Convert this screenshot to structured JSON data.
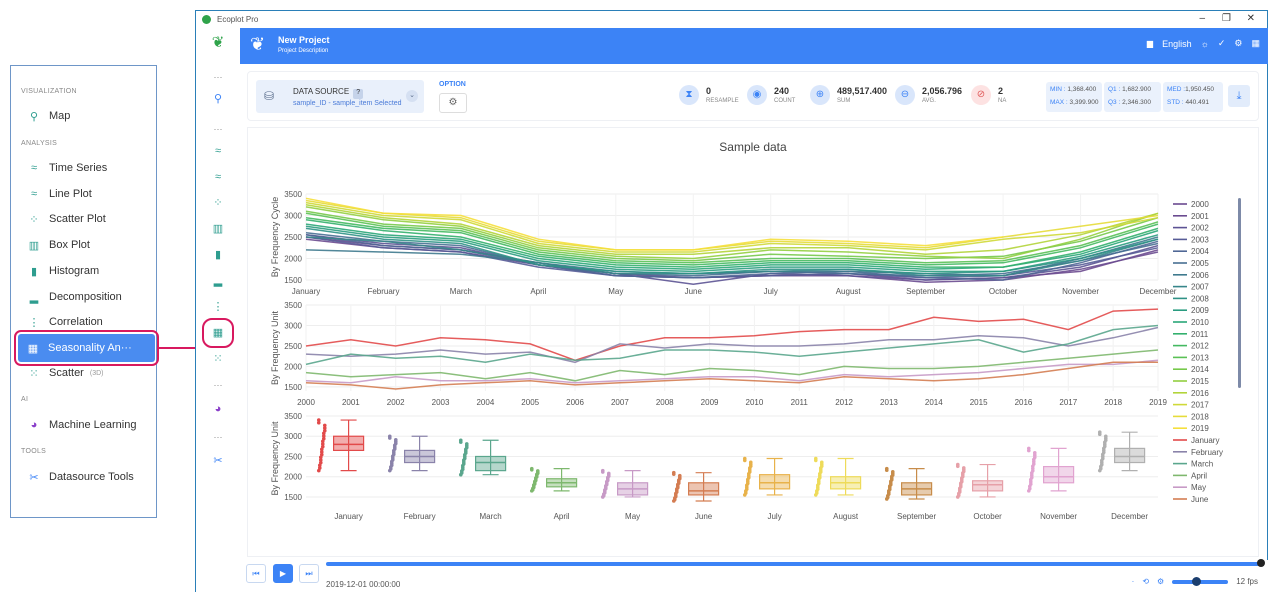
{
  "sidebar": {
    "sections": {
      "visualization": "VISUALIZATION",
      "analysis": "ANALYSIS",
      "ai": "AI",
      "tools": "TOOLS"
    },
    "items": [
      {
        "label": "Map",
        "icon": "map-pin-icon"
      },
      {
        "label": "Time Series",
        "icon": "time-series-icon"
      },
      {
        "label": "Line Plot",
        "icon": "line-plot-icon"
      },
      {
        "label": "Scatter Plot",
        "icon": "scatter-plot-icon"
      },
      {
        "label": "Box Plot",
        "icon": "box-plot-icon"
      },
      {
        "label": "Histogram",
        "icon": "histogram-icon"
      },
      {
        "label": "Decomposition",
        "icon": "decomposition-icon"
      },
      {
        "label": "Correlation",
        "icon": "correlation-icon"
      },
      {
        "label": "Seasonality An···",
        "icon": "seasonality-icon",
        "active": true
      },
      {
        "label": "Scatter",
        "tag": "(3D)",
        "icon": "scatter-3d-icon"
      },
      {
        "label": "Machine Learning",
        "icon": "machine-learning-icon"
      },
      {
        "label": "Datasource Tools",
        "icon": "datasource-tools-icon"
      }
    ]
  },
  "window": {
    "title": "Ecoplot Pro",
    "minimize": "–",
    "maximize": "❐",
    "close": "✕"
  },
  "header": {
    "project": "New Project",
    "description": "Project Description",
    "language": "English"
  },
  "toolbar": {
    "datasource_label": "DATA SOURCE",
    "datasource_help": "?",
    "datasource_value": "sample_ID - sample_item Selected",
    "option_label": "OPTION",
    "stats": [
      {
        "value": "0",
        "label": "RESAMPLE",
        "icon": "resample-icon",
        "color": "#3c83f6"
      },
      {
        "value": "240",
        "label": "COUNT",
        "icon": "count-icon",
        "color": "#3c83f6"
      },
      {
        "value": "489,517.400",
        "label": "SUM",
        "icon": "sum-icon",
        "color": "#3c83f6"
      },
      {
        "value": "2,056.796",
        "label": "AVG.",
        "icon": "avg-icon",
        "color": "#3c83f6"
      },
      {
        "value": "2",
        "label": "NA",
        "icon": "na-icon",
        "color": "#e05a5a"
      }
    ],
    "quartiles": {
      "min_l": "MIN :",
      "min": "1,368.400",
      "q1_l": "Q1 :",
      "q1": "1,682.900",
      "med_l": "MED :",
      "med": "1,950.450",
      "max_l": "MAX :",
      "max": "3,399.900",
      "q3_l": "Q3 :",
      "q3": "2,346.300",
      "std_l": "STD :",
      "std": "440.491"
    }
  },
  "chart_data": {
    "type": "line",
    "title": "Sample data",
    "panels": [
      {
        "ylabel": "By Frequency Cycle",
        "ylim": [
          1500,
          3500
        ],
        "yticks": [
          1500,
          2000,
          2500,
          3000,
          3500
        ],
        "categories": [
          "January",
          "February",
          "March",
          "April",
          "May",
          "June",
          "July",
          "August",
          "September",
          "October",
          "November",
          "December"
        ],
        "series": [
          {
            "name": "2000",
            "values": [
              2450,
              2250,
              2150,
              1850,
              1600,
              1550,
              1600,
              1650,
              1500,
              1550,
              1700,
              2200
            ]
          },
          {
            "name": "2001",
            "values": [
              2500,
              2300,
              2200,
              1900,
              1650,
              1550,
              1600,
              1600,
              1450,
              1500,
              1750,
              2150
            ]
          },
          {
            "name": "2002",
            "values": [
              2550,
              2350,
              2250,
              1850,
              1650,
              1400,
              1650,
              1600,
              1500,
              1550,
              1800,
              2300
            ]
          },
          {
            "name": "2003",
            "values": [
              2500,
              2250,
              2150,
              1800,
              1600,
              1550,
              1600,
              1650,
              1550,
              1600,
              1850,
              2250
            ]
          },
          {
            "name": "2004",
            "values": [
              2550,
              2300,
              2200,
              1850,
              1600,
              1550,
              1650,
              1700,
              1550,
              1500,
              1900,
              2400
            ]
          },
          {
            "name": "2005",
            "values": [
              2600,
              2400,
              2300,
              1850,
              1650,
              1600,
              1700,
              1650,
              1600,
              1650,
              1950,
              2350
            ]
          },
          {
            "name": "2006",
            "values": [
              2200,
              2150,
              2100,
              1900,
              1700,
              1650,
              1700,
              1700,
              1650,
              1600,
              2000,
              2500
            ]
          },
          {
            "name": "2007",
            "values": [
              2500,
              2400,
              2200,
              1900,
              1650,
              1650,
              1700,
              1750,
              1600,
              1600,
              1950,
              2450
            ]
          },
          {
            "name": "2008",
            "values": [
              2700,
              2450,
              2350,
              1850,
              1700,
              1650,
              1750,
              1750,
              1650,
              1700,
              2000,
              2450
            ]
          },
          {
            "name": "2009",
            "values": [
              2750,
              2500,
              2400,
              1950,
              1750,
              1700,
              1800,
              1800,
              1700,
              1700,
              2050,
              2550
            ]
          },
          {
            "name": "2010",
            "values": [
              2800,
              2550,
              2450,
              2000,
              1800,
              1750,
              1850,
              1850,
              1750,
              1800,
              2100,
              2650
            ]
          },
          {
            "name": "2011",
            "values": [
              2900,
              2650,
              2500,
              2050,
              1850,
              1800,
              1900,
              1900,
              1800,
              1800,
              2150,
              2700
            ]
          },
          {
            "name": "2012",
            "values": [
              2950,
              2700,
              2600,
              2100,
              1900,
              1850,
              1950,
              1950,
              1850,
              1900,
              2250,
              2800
            ]
          },
          {
            "name": "2013",
            "values": [
              3050,
              2750,
              2650,
              2150,
              1950,
              1900,
              2000,
              2000,
              1900,
              1950,
              2300,
              2850
            ]
          },
          {
            "name": "2014",
            "values": [
              3100,
              2800,
              2700,
              2200,
              2000,
              1950,
              2100,
              2050,
              2000,
              2050,
              2400,
              2950
            ]
          },
          {
            "name": "2015",
            "values": [
              3200,
              2900,
              2750,
              2250,
              2050,
              2000,
              2200,
              2150,
              2050,
              2000,
              2450,
              3050
            ]
          },
          {
            "name": "2016",
            "values": [
              3250,
              2950,
              2800,
              2300,
              2100,
              2100,
              2250,
              2250,
              2100,
              2200,
              2550,
              3050
            ]
          },
          {
            "name": "2017",
            "values": [
              3300,
              3000,
              2900,
              2350,
              2150,
              2150,
              2350,
              2300,
              2200,
              2450,
              2600,
              2950
            ]
          },
          {
            "name": "2018",
            "values": [
              3350,
              3050,
              2950,
              2400,
              2200,
              2200,
              2400,
              2350,
              2250,
              2500,
              2750,
              3000
            ]
          },
          {
            "name": "2019",
            "values": [
              3400,
              3050,
              3000,
              2450,
              2200,
              2200,
              2450,
              2400,
              2300,
              2500,
              null,
              null
            ]
          }
        ]
      },
      {
        "ylabel": "By Frequency Unit",
        "ylim": [
          1400,
          3500
        ],
        "yticks": [
          1500,
          2000,
          2500,
          3000,
          3500
        ],
        "x": [
          2000,
          2001,
          2002,
          2003,
          2004,
          2005,
          2006,
          2007,
          2008,
          2009,
          2010,
          2011,
          2012,
          2013,
          2014,
          2015,
          2016,
          2017,
          2018,
          2019
        ],
        "series": [
          {
            "name": "January",
            "values": [
              2500,
              2650,
              2500,
              2700,
              2650,
              2550,
              2150,
              2500,
              2700,
              2700,
              2750,
              2850,
              2900,
              2900,
              3200,
              3100,
              3150,
              2900,
              3350,
              3400
            ]
          },
          {
            "name": "February",
            "values": [
              2300,
              2250,
              2300,
              2400,
              2300,
              2350,
              2100,
              2550,
              2450,
              2550,
              2500,
              2500,
              2550,
              2650,
              2650,
              2750,
              2700,
              2500,
              2700,
              2950
            ]
          },
          {
            "name": "March",
            "values": [
              2050,
              2300,
              2200,
              2250,
              2100,
              2300,
              2150,
              2200,
              2400,
              2400,
              2350,
              2250,
              2350,
              2450,
              2550,
              2650,
              2350,
              2550,
              2900,
              3000
            ]
          },
          {
            "name": "April",
            "values": [
              1850,
              1750,
              1800,
              1850,
              1700,
              1850,
              1650,
              1900,
              1800,
              1950,
              1900,
              1800,
              2000,
              1950,
              1950,
              2000,
              2100,
              2200,
              2300,
              2400
            ]
          },
          {
            "name": "May",
            "values": [
              1650,
              1600,
              1750,
              1650,
              1650,
              1700,
              1600,
              1650,
              1700,
              1750,
              1750,
              1650,
              1800,
              1750,
              1800,
              1850,
              1950,
              2050,
              2050,
              2150
            ]
          },
          {
            "name": "June",
            "values": [
              1600,
              1550,
              1450,
              1550,
              1600,
              1650,
              1550,
              1600,
              1650,
              1700,
              1650,
              1600,
              1750,
              1700,
              1650,
              1700,
              1800,
              1950,
              2100,
              2100
            ]
          }
        ]
      },
      {
        "type": "box",
        "ylabel": "By Frequency Unit",
        "ylim": [
          1400,
          3500
        ],
        "yticks": [
          1500,
          2000,
          2500,
          3000,
          3500
        ],
        "categories": [
          "January",
          "February",
          "March",
          "April",
          "May",
          "June",
          "July",
          "August",
          "September",
          "October",
          "November",
          "December"
        ],
        "boxes": [
          {
            "min": 2150,
            "q1": 2650,
            "med": 2800,
            "q3": 3000,
            "max": 3400
          },
          {
            "min": 2150,
            "q1": 2350,
            "med": 2500,
            "q3": 2650,
            "max": 3000
          },
          {
            "min": 2050,
            "q1": 2150,
            "med": 2350,
            "q3": 2500,
            "max": 2900
          },
          {
            "min": 1650,
            "q1": 1750,
            "med": 1850,
            "q3": 1950,
            "max": 2200
          },
          {
            "min": 1500,
            "q1": 1550,
            "med": 1700,
            "q3": 1850,
            "max": 2150
          },
          {
            "min": 1400,
            "q1": 1550,
            "med": 1650,
            "q3": 1850,
            "max": 2100
          },
          {
            "min": 1550,
            "q1": 1700,
            "med": 1850,
            "q3": 2050,
            "max": 2450
          },
          {
            "min": 1550,
            "q1": 1700,
            "med": 1850,
            "q3": 2000,
            "max": 2450
          },
          {
            "min": 1450,
            "q1": 1550,
            "med": 1700,
            "q3": 1850,
            "max": 2200
          },
          {
            "min": 1500,
            "q1": 1650,
            "med": 1800,
            "q3": 1900,
            "max": 2300
          },
          {
            "min": 1650,
            "q1": 1850,
            "med": 2000,
            "q3": 2250,
            "max": 2700
          },
          {
            "min": 2150,
            "q1": 2350,
            "med": 2500,
            "q3": 2700,
            "max": 3100
          }
        ]
      }
    ],
    "legend": [
      "2000",
      "2001",
      "2002",
      "2003",
      "2004",
      "2005",
      "2006",
      "2007",
      "2008",
      "2009",
      "2010",
      "2011",
      "2012",
      "2013",
      "2014",
      "2015",
      "2016",
      "2017",
      "2018",
      "2019",
      "January",
      "February",
      "March",
      "April",
      "May",
      "June"
    ],
    "legend_position": "right",
    "colors": {
      "years": [
        "#6b4a8f",
        "#6a4b90",
        "#5c5394",
        "#575c97",
        "#4f6795",
        "#476f92",
        "#3f7a8e",
        "#37868a",
        "#2f9286",
        "#2a9c80",
        "#2aa678",
        "#33b06d",
        "#44b961",
        "#5ac155",
        "#76c94a",
        "#93cf40",
        "#b2d43a",
        "#cfd938",
        "#e6dc3a",
        "#f5df3c"
      ],
      "months": [
        "#e24a4a",
        "#8a83aa",
        "#5aa68d",
        "#7eb86e",
        "#c79ac6",
        "#d47d52",
        "#e8b24a",
        "#eedb5a",
        "#c78c4a",
        "#e6a0a8",
        "#e1a3d0",
        "#b0b0b0"
      ]
    },
    "grid": true
  },
  "footer": {
    "time": "2019-12-01 00:00:00",
    "fps": "12 fps"
  }
}
